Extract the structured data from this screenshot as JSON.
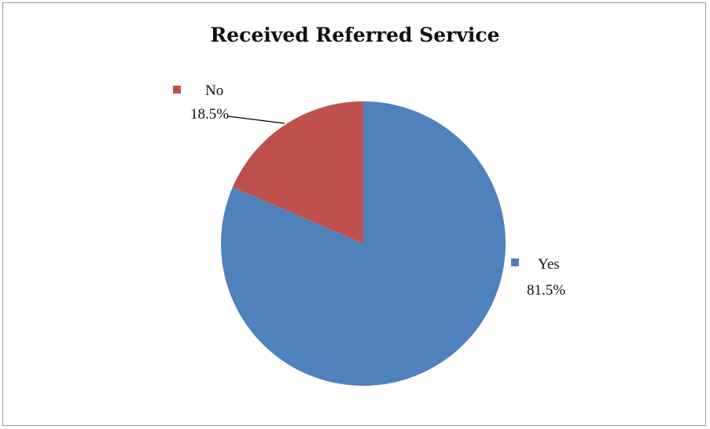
{
  "chart_data": {
    "type": "pie",
    "title": "Received Referred Service",
    "slices": [
      {
        "label": "Yes",
        "value": 81.5,
        "value_label": "81.5%",
        "color": "#4f81bd"
      },
      {
        "label": "No",
        "value": 18.5,
        "value_label": "18.5%",
        "color": "#c0504d"
      }
    ],
    "start_angle_deg": 0,
    "direction": "clockwise"
  }
}
